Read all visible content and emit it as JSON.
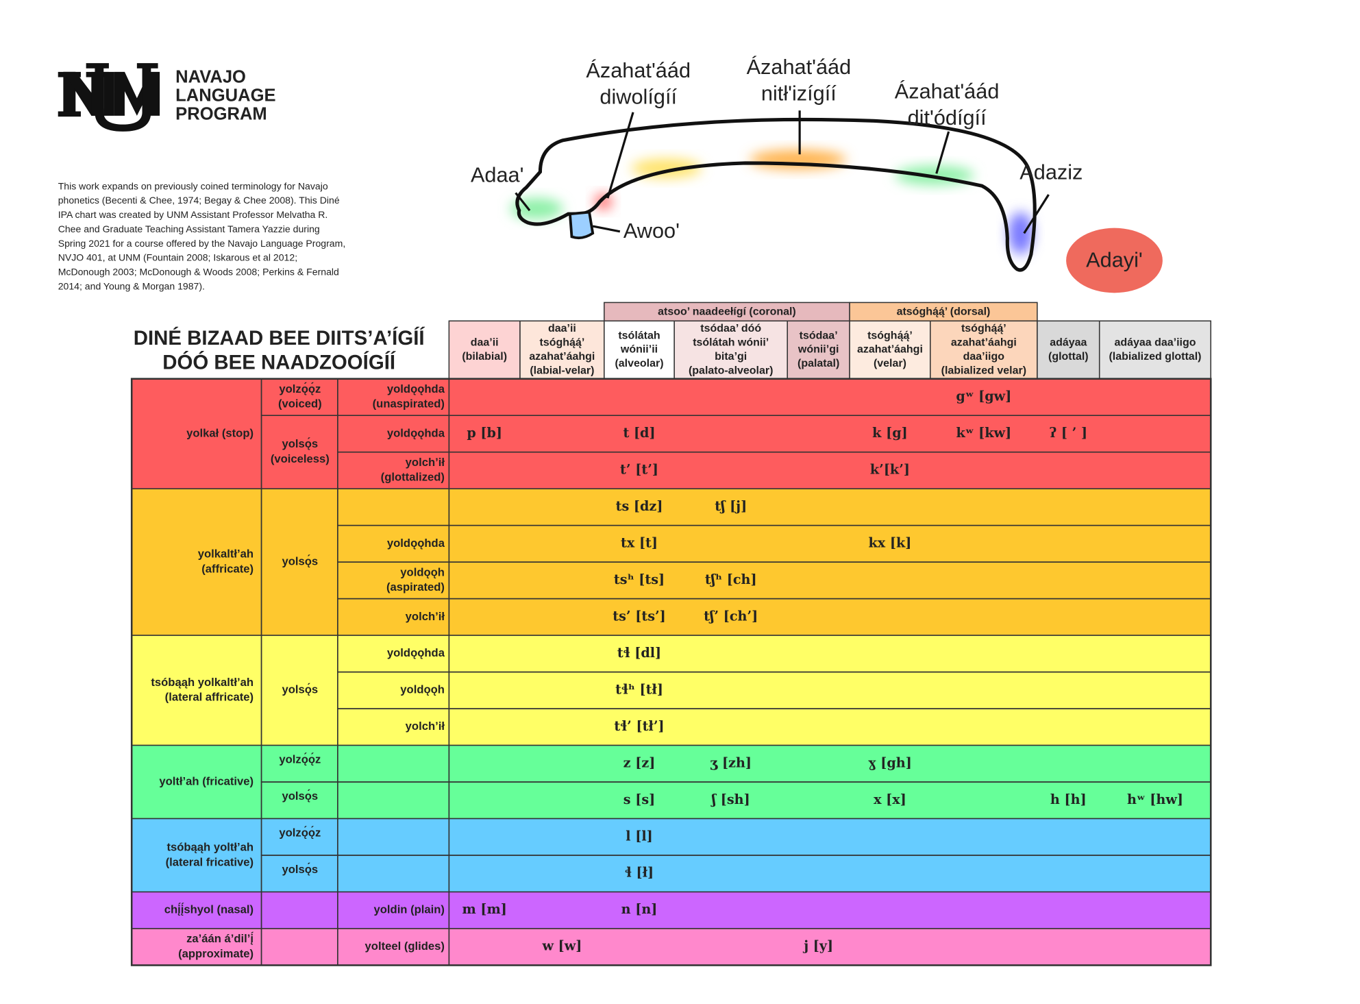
{
  "logo": {
    "lines": [
      "NAVAJO",
      "LANGUAGE",
      "PROGRAM"
    ]
  },
  "credits": {
    "lines": [
      "This work expands on previously coined terminology for Navajo",
      "phonetics (Becenti & Chee, 1974; Begay & Chee 2008).  This Diné",
      "IPA chart was created by UNM Assistant Professor Melvatha R.",
      "Chee and Graduate Teaching Assistant Tamera Yazzie during",
      "Spring 2021 for a course offered by the Navajo Language Program,",
      "NVJO 401, at UNM (Fountain 2008; Iskarous et al 2012;",
      "McDonough 2003; McDonough & Woods 2008; Perkins & Fernald",
      "2014; and Young & Morgan 1987)."
    ]
  },
  "diagram": {
    "labels": [
      {
        "lines": [
          "Adaa'"
        ]
      },
      {
        "lines": [
          "Ázahat'áád",
          "diwolígíí"
        ]
      },
      {
        "lines": [
          "Ázahat'áád",
          "nitł'izígíí"
        ]
      },
      {
        "lines": [
          "Ázahat'áád",
          "dit'ódígíí"
        ]
      },
      {
        "lines": [
          "Adaziz"
        ]
      },
      {
        "lines": [
          "Awoo'"
        ]
      },
      {
        "lines": [
          "Adayi'"
        ]
      }
    ]
  },
  "title": {
    "lines": [
      "DINÉ BIZAAD BEE DIITS’A’ÍGÍÍ",
      "DÓÓ BEE NAADZOOÍGÍÍ"
    ]
  },
  "table": {
    "columns": [
      {
        "lines": [
          "daa’ii",
          "(bilabial)"
        ],
        "color": "#fdd3d3"
      },
      {
        "lines": [
          "daa’ii",
          "tsóghą́ą́’",
          "azahat’áahgi",
          "(labial-velar)"
        ],
        "color": "#fde6da"
      },
      {
        "group": "atsoo’ naadeełígí (coronal)",
        "color": "#e6b9bd",
        "columns": [
          {
            "lines": [
              "tsólátah",
              "wónii’ii",
              "(alveolar)"
            ],
            "color": "#ffffff"
          },
          {
            "lines": [
              "tsódaa’ dóó",
              "tsólátah wónii’",
              "bita’gi",
              "(palato-alveolar)"
            ],
            "color": "#f6e3e3"
          },
          {
            "lines": [
              "tsódaa’",
              "wónii’gi",
              "(palatal)"
            ],
            "color": "#e8c3c6"
          }
        ]
      },
      {
        "group": "atsóghą́ą́’ (dorsal)",
        "color": "#fbc697",
        "columns": [
          {
            "lines": [
              "tsóghą́ą́’",
              "azahat’áahgi",
              "(velar)"
            ],
            "color": "#fdebdf"
          },
          {
            "lines": [
              "tsóghą́ą́’",
              "azahat’áahgi",
              "daa’iigo",
              "(labialized velar)"
            ],
            "color": "#fcd6bb"
          }
        ]
      },
      {
        "lines": [
          "adáyaa",
          "(glottal)"
        ],
        "color": "#d9d9d9"
      },
      {
        "lines": [
          "adáyaa daa’iigo",
          "(labialized glottal)"
        ],
        "color": "#e3e3e3"
      }
    ],
    "manners": [
      {
        "label": [
          "yolkał (stop)"
        ],
        "color": "#fe5c5e",
        "voicings": [
          {
            "label": [
              "yolzǫ́ǫ́z",
              "(voiced)"
            ],
            "rows": [
              {
                "label": [
                  "yoldǫǫhda",
                  "(unaspirated)"
                ],
                "cells": [
                  null,
                  null,
                  null,
                  null,
                  null,
                  null,
                  "gʷ [gw]",
                  null,
                  null
                ]
              }
            ]
          },
          {
            "label": [
              "yolsǫ́s",
              "(voiceless)"
            ],
            "rows": [
              {
                "label": [
                  "yoldǫǫhda"
                ],
                "cells": [
                  "p [b]",
                  null,
                  "t [d]",
                  null,
                  null,
                  "k [g]",
                  "kʷ [kw]",
                  "ʔ [ ’ ]",
                  null
                ]
              },
              {
                "label": [
                  "yolch’ił",
                  "(glottalized)"
                ],
                "cells": [
                  null,
                  null,
                  "t’ [t’]",
                  null,
                  null,
                  "k’[k’]",
                  null,
                  null,
                  null
                ]
              }
            ]
          }
        ]
      },
      {
        "label": [
          "yolkaltł’ah",
          "(affricate)"
        ],
        "color": "#fec82f",
        "voicings": [
          {
            "label": [
              "yolsǫ́s"
            ],
            "rows": [
              {
                "label": [],
                "cells": [
                  null,
                  null,
                  "ts [dz]",
                  "tʃ [j]",
                  null,
                  null,
                  null,
                  null,
                  null
                ]
              },
              {
                "label": [
                  "yoldǫǫhda"
                ],
                "cells": [
                  null,
                  null,
                  "tx [t]",
                  null,
                  null,
                  "kx [k]",
                  null,
                  null,
                  null
                ]
              },
              {
                "label": [
                  "yoldǫǫh",
                  "(aspirated)"
                ],
                "cells": [
                  null,
                  null,
                  "tsʰ [ts]",
                  "tʃʰ [ch]",
                  null,
                  null,
                  null,
                  null,
                  null
                ]
              },
              {
                "label": [
                  "yolch’ił"
                ],
                "cells": [
                  null,
                  null,
                  "ts’ [ts’]",
                  "tʃ’ [ch’]",
                  null,
                  null,
                  null,
                  null,
                  null
                ]
              }
            ]
          }
        ]
      },
      {
        "label": [
          "tsóbąąh yolkaltł’ah",
          "(lateral affricate)"
        ],
        "color": "#ffff66",
        "voicings": [
          {
            "label": [
              "yolsǫ́s"
            ],
            "rows": [
              {
                "label": [
                  "yoldǫǫhda"
                ],
                "cells": [
                  null,
                  null,
                  "tɬ [dl]",
                  null,
                  null,
                  null,
                  null,
                  null,
                  null
                ]
              },
              {
                "label": [
                  "yoldǫǫh"
                ],
                "cells": [
                  null,
                  null,
                  "tɬʰ [tł]",
                  null,
                  null,
                  null,
                  null,
                  null,
                  null
                ]
              },
              {
                "label": [
                  "yolch’ił"
                ],
                "cells": [
                  null,
                  null,
                  "tɬ’ [tł’]",
                  null,
                  null,
                  null,
                  null,
                  null,
                  null
                ]
              }
            ]
          }
        ]
      },
      {
        "label": [
          "yoltł’ah (fricative)"
        ],
        "color": "#66ff99",
        "voicings": [
          {
            "label": [
              "yolzǫ́ǫ́z"
            ],
            "rows": [
              {
                "label": [],
                "cells": [
                  null,
                  null,
                  "z [z]",
                  "ʒ [zh]",
                  null,
                  "ɣ [gh]",
                  null,
                  null,
                  null
                ]
              }
            ]
          },
          {
            "label": [
              "yolsǫ́s"
            ],
            "rows": [
              {
                "label": [],
                "cells": [
                  null,
                  null,
                  "s [s]",
                  "ʃ [sh]",
                  null,
                  "x [x]",
                  null,
                  "h [h]",
                  "hʷ [hw]"
                ]
              }
            ]
          }
        ]
      },
      {
        "label": [
          "tsóbąąh yoltł’ah",
          "(lateral fricative)"
        ],
        "color": "#66ccff",
        "voicings": [
          {
            "label": [
              "yolzǫ́ǫ́z"
            ],
            "rows": [
              {
                "label": [],
                "cells": [
                  null,
                  null,
                  "l [l]",
                  null,
                  null,
                  null,
                  null,
                  null,
                  null
                ]
              }
            ]
          },
          {
            "label": [
              "yolsǫ́s"
            ],
            "rows": [
              {
                "label": [],
                "cells": [
                  null,
                  null,
                  "ɬ [ł]",
                  null,
                  null,
                  null,
                  null,
                  null,
                  null
                ]
              }
            ]
          }
        ]
      },
      {
        "label": [
          "chį́į́shyol (nasal)"
        ],
        "color": "#cc66ff",
        "voicings": [
          {
            "label": [],
            "rows": [
              {
                "label": [
                  "yoldin (plain)"
                ],
                "cells": [
                  "m [m]",
                  null,
                  "n [n]",
                  null,
                  null,
                  null,
                  null,
                  null,
                  null
                ]
              }
            ]
          }
        ]
      },
      {
        "label": [
          "za’áán á’dil’į́",
          "(approximate)"
        ],
        "color": "#ff88cc",
        "voicings": [
          {
            "label": [],
            "rows": [
              {
                "label": [
                  "yolteel (glides)"
                ],
                "cells": [
                  null,
                  "w [w]",
                  null,
                  null,
                  "j [y]",
                  null,
                  null,
                  null,
                  null
                ]
              }
            ]
          }
        ]
      }
    ]
  }
}
